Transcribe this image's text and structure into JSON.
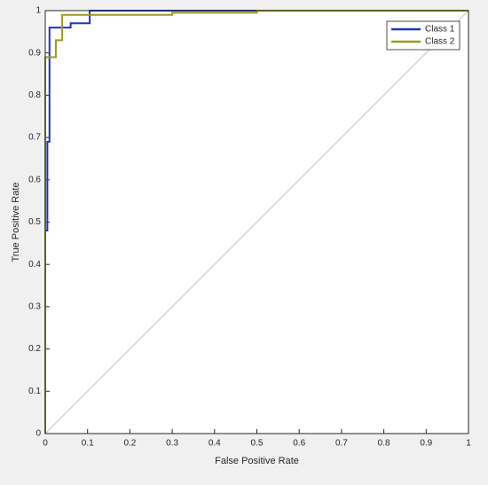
{
  "chart_data": {
    "type": "line",
    "xlabel": "False Positive Rate",
    "ylabel": "True Positive Rate",
    "xlim": [
      0,
      1
    ],
    "ylim": [
      0,
      1
    ],
    "xticks": [
      0,
      0.1,
      0.2,
      0.3,
      0.4,
      0.5,
      0.6,
      0.7,
      0.8,
      0.9,
      1
    ],
    "yticks": [
      0,
      0.1,
      0.2,
      0.3,
      0.4,
      0.5,
      0.6,
      0.7,
      0.8,
      0.9,
      1
    ],
    "legend": "northeast",
    "reference": {
      "x": [
        0,
        1
      ],
      "y": [
        0,
        1
      ],
      "color": "#d4d4d4"
    },
    "series": [
      {
        "name": "Class 1",
        "color": "#1f32c8",
        "x": [
          0,
          0,
          0.005,
          0.005,
          0.01,
          0.01,
          0.06,
          0.06,
          0.105,
          0.105,
          1
        ],
        "y": [
          0,
          0.48,
          0.48,
          0.69,
          0.69,
          0.96,
          0.96,
          0.97,
          0.97,
          1,
          1
        ]
      },
      {
        "name": "Class 2",
        "color": "#9a9a1e",
        "x": [
          0,
          0,
          0.025,
          0.025,
          0.04,
          0.04,
          0.3,
          0.3,
          0.5,
          0.5,
          1
        ],
        "y": [
          0,
          0.89,
          0.89,
          0.93,
          0.93,
          0.99,
          0.99,
          0.995,
          0.995,
          1,
          1
        ]
      }
    ]
  }
}
